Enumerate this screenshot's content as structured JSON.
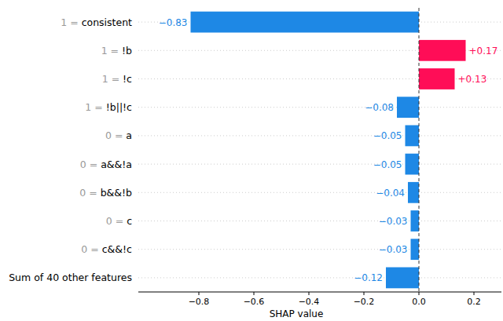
{
  "chart_data": {
    "type": "bar",
    "orientation": "horizontal",
    "xlabel": "SHAP value",
    "categories": [
      "1 = consistent",
      "1 = !b",
      "1 = !c",
      "1 = !b||!c",
      "0 = a",
      "0 = a&&!a",
      "0 = b&&!b",
      "0 = c",
      "0 = c&&!c",
      "Sum of 40 other features"
    ],
    "values": [
      -0.83,
      0.17,
      0.13,
      -0.08,
      -0.05,
      -0.05,
      -0.04,
      -0.03,
      -0.03,
      -0.12
    ],
    "value_labels": [
      "−0.83",
      "+0.17",
      "+0.13",
      "−0.08",
      "−0.05",
      "−0.05",
      "−0.04",
      "−0.03",
      "−0.03",
      "−0.12"
    ],
    "colors": [
      "#1e88e5",
      "#ff0d57",
      "#ff0d57",
      "#1e88e5",
      "#1e88e5",
      "#1e88e5",
      "#1e88e5",
      "#1e88e5",
      "#1e88e5",
      "#1e88e5"
    ],
    "data_labels": true,
    "grid": true,
    "xlim": [
      -1.02,
      0.3
    ],
    "xticks": [
      {
        "value": -0.8,
        "label": "−0.8"
      },
      {
        "value": -0.6,
        "label": "−0.6"
      },
      {
        "value": -0.4,
        "label": "−0.4"
      },
      {
        "value": -0.2,
        "label": "−0.2"
      },
      {
        "value": 0,
        "label": "0.0"
      },
      0.2
    ]
  }
}
